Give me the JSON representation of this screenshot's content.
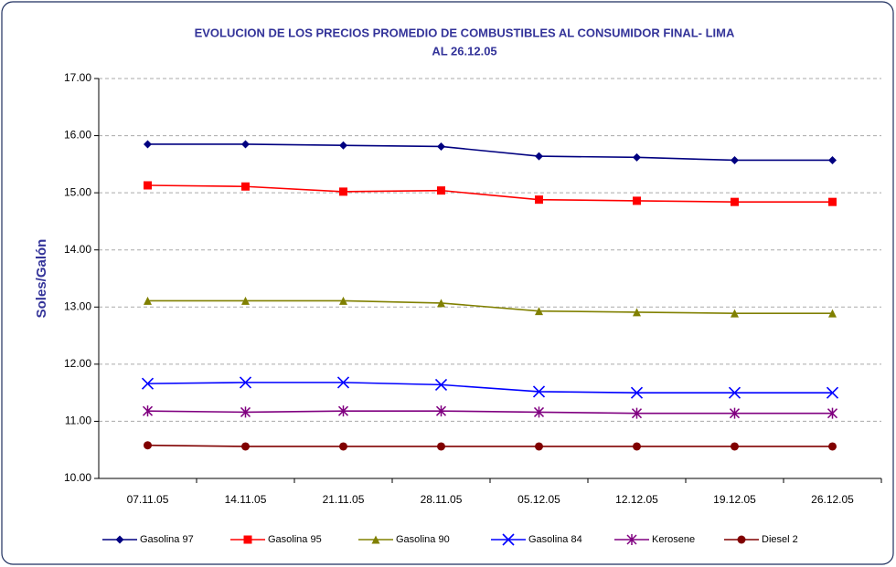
{
  "chart_data": {
    "type": "line",
    "title": [
      "EVOLUCION DE LOS PRECIOS PROMEDIO DE COMBUSTIBLES AL CONSUMIDOR FINAL- LIMA",
      "AL 26.12.05"
    ],
    "y_label": "Soles/Galón",
    "categories": [
      "07.11.05",
      "14.11.05",
      "21.11.05",
      "28.11.05",
      "05.12.05",
      "12.12.05",
      "19.12.05",
      "26.12.05"
    ],
    "series": [
      {
        "name": "Gasolina 97",
        "color": "#000080",
        "marker": "diamond",
        "values": [
          15.85,
          15.85,
          15.83,
          15.81,
          15.64,
          15.62,
          15.57,
          15.57
        ]
      },
      {
        "name": "Gasolina 95",
        "color": "#ff0000",
        "marker": "square",
        "values": [
          15.13,
          15.11,
          15.02,
          15.04,
          14.88,
          14.86,
          14.84,
          14.84
        ]
      },
      {
        "name": "Gasolina 90",
        "color": "#808000",
        "marker": "triangle",
        "values": [
          13.11,
          13.11,
          13.11,
          13.07,
          12.93,
          12.91,
          12.89,
          12.89
        ]
      },
      {
        "name": "Gasolina 84",
        "color": "#0000ff",
        "marker": "x",
        "values": [
          11.66,
          11.68,
          11.68,
          11.64,
          11.52,
          11.5,
          11.5,
          11.5
        ]
      },
      {
        "name": "Kerosene",
        "color": "#800080",
        "marker": "star",
        "values": [
          11.18,
          11.16,
          11.18,
          11.18,
          11.16,
          11.14,
          11.14,
          11.14
        ]
      },
      {
        "name": "Diesel 2",
        "color": "#800000",
        "marker": "circle",
        "values": [
          10.58,
          10.56,
          10.56,
          10.56,
          10.56,
          10.56,
          10.56,
          10.56
        ]
      }
    ],
    "ylim": [
      10,
      17
    ],
    "yticks": [
      {
        "value": 10,
        "label": "10.00"
      },
      {
        "value": 11,
        "label": "11.00"
      },
      {
        "value": 12,
        "label": "12.00"
      },
      {
        "value": 13,
        "label": "13.00"
      },
      {
        "value": 14,
        "label": "14.00"
      },
      {
        "value": 15,
        "label": "15.00"
      },
      {
        "value": 16,
        "label": "16.00"
      },
      {
        "value": 17,
        "label": "17.00"
      }
    ],
    "grid": true,
    "legend": "bottom"
  }
}
